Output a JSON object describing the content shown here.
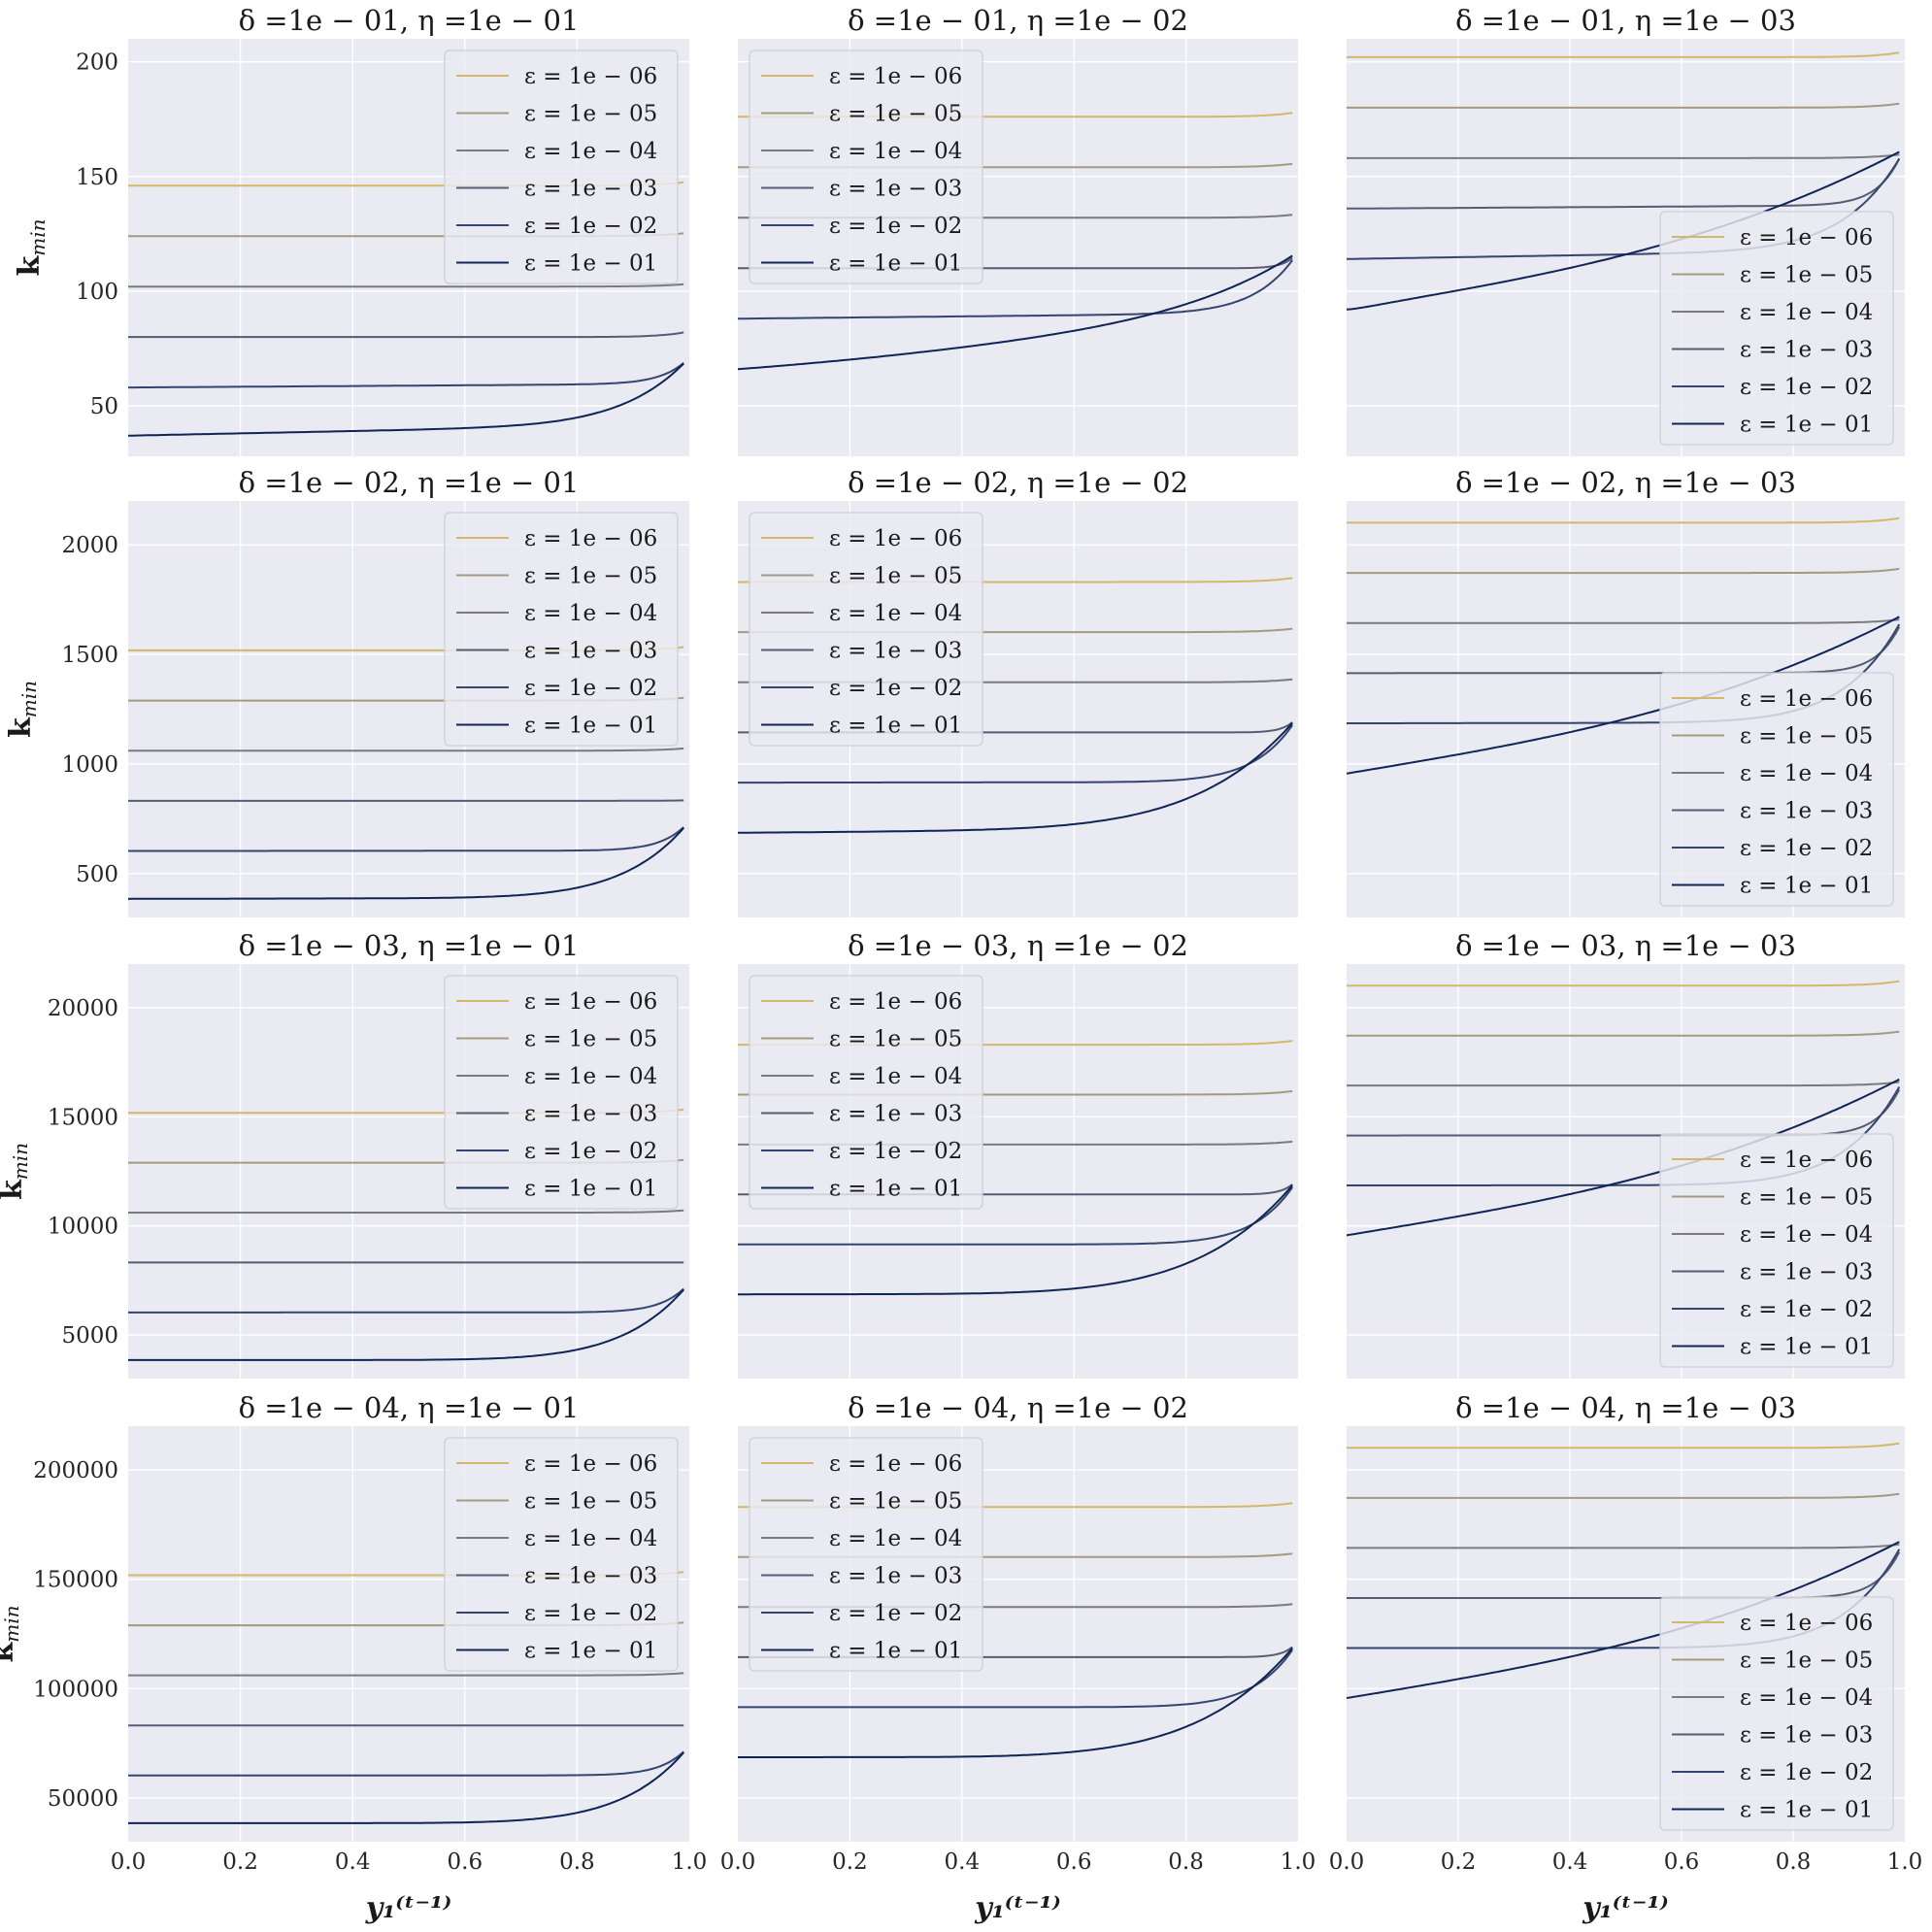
{
  "chart_data": {
    "type": "line",
    "layout": {
      "rows": 4,
      "cols": 3
    },
    "xlabel": "y₁⁽ᵗ⁻¹⁾",
    "ylabel": "k",
    "ylabel_sub": "min",
    "xticks": [
      "0.0",
      "0.2",
      "0.4",
      "0.6",
      "0.8",
      "1.0"
    ],
    "xlim": [
      0,
      1
    ],
    "colors": [
      "#d4b86a",
      "#a39b80",
      "#7a7a7f",
      "#565d72",
      "#34466f",
      "#0f2555"
    ],
    "legend_entries": [
      "ε = 1e − 06",
      "ε = 1e − 05",
      "ε = 1e − 04",
      "ε = 1e − 03",
      "ε = 1e − 02",
      "ε = 1e − 01"
    ],
    "legend_placement": [
      "upper-right",
      "upper-left",
      "lower-right"
    ],
    "rows": [
      {
        "delta": "1e − 01",
        "ylim": [
          28,
          210
        ],
        "yticks": [
          50,
          100,
          150,
          200
        ],
        "ytick_labels": [
          "50",
          "100",
          "150",
          "200"
        ]
      },
      {
        "delta": "1e − 02",
        "ylim": [
          300,
          2200
        ],
        "yticks": [
          500,
          1000,
          1500,
          2000
        ],
        "ytick_labels": [
          "500",
          "1000",
          "1500",
          "2000"
        ]
      },
      {
        "delta": "1e − 03",
        "ylim": [
          3000,
          22000
        ],
        "yticks": [
          5000,
          10000,
          15000,
          20000
        ],
        "ytick_labels": [
          "5000",
          "10000",
          "15000",
          "20000"
        ]
      },
      {
        "delta": "1e − 04",
        "ylim": [
          30000,
          220000
        ],
        "yticks": [
          50000,
          100000,
          150000,
          200000
        ],
        "ytick_labels": [
          "50000",
          "100000",
          "150000",
          "200000"
        ]
      }
    ],
    "cols": [
      {
        "eta": "1e − 01",
        "base": [
          146,
          124,
          102,
          80,
          58,
          37
        ],
        "end_value": 71
      },
      {
        "eta": "1e − 02",
        "base": [
          176,
          154,
          132,
          110,
          88,
          66
        ],
        "end_value": 117
      },
      {
        "eta": "1e − 03",
        "base": [
          202,
          180,
          158,
          136,
          114,
          92
        ],
        "end_value": 162
      }
    ],
    "row_scale": [
      1,
      10.4,
      104,
      1040
    ],
    "title_template": "δ =DELTA, η =ETA"
  }
}
